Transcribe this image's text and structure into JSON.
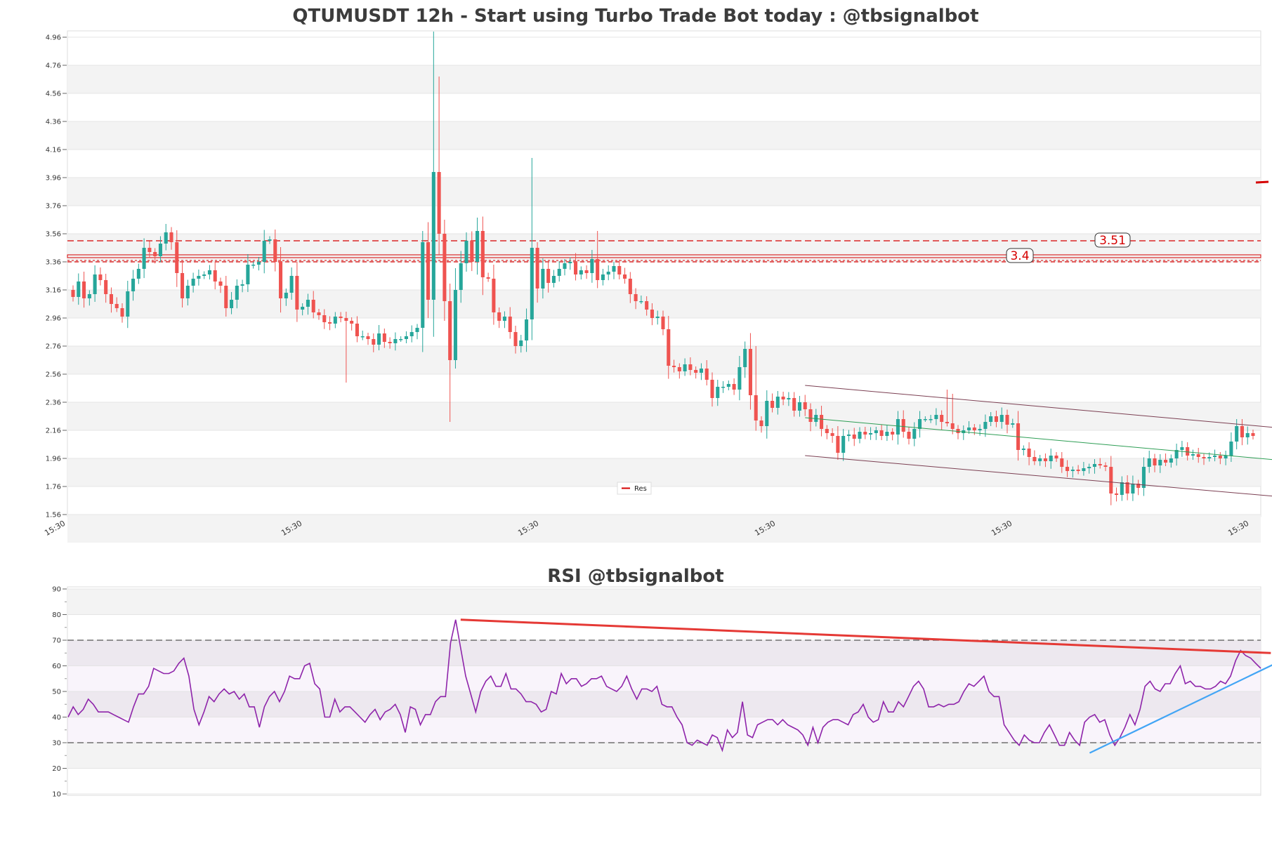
{
  "chart_data": [
    {
      "type": "candlestick",
      "title": "QTUMUSDT 12h - Start using Turbo Trade Bot today : @tbsignalbot",
      "y_ticks": [
        "4.96",
        "4.76",
        "4.56",
        "4.36",
        "4.16",
        "3.96",
        "3.76",
        "3.56",
        "3.36",
        "3.16",
        "2.96",
        "2.76",
        "2.56",
        "2.36",
        "2.16",
        "1.96",
        "1.76",
        "1.56"
      ],
      "ylim": [
        1.56,
        5.0
      ],
      "x_ticks": [
        "15:30",
        "15:30",
        "15:30",
        "15:30",
        "15:30",
        "15:30"
      ],
      "grid": "horizontal alternating bands",
      "colors": {
        "up": "#26a69a",
        "down": "#ef5350",
        "resistance": "#d50000",
        "channel": "#7b3f52",
        "trend": "#2e9e55"
      },
      "close": [
        3.11,
        3.22,
        3.1,
        3.13,
        3.27,
        3.23,
        3.13,
        3.06,
        3.03,
        2.97,
        3.15,
        3.24,
        3.31,
        3.46,
        3.43,
        3.4,
        3.49,
        3.57,
        3.5,
        3.28,
        3.1,
        3.19,
        3.24,
        3.26,
        3.27,
        3.3,
        3.22,
        3.19,
        3.03,
        3.09,
        3.19,
        3.2,
        3.34,
        3.34,
        3.36,
        3.51,
        3.52,
        3.36,
        3.1,
        3.14,
        3.26,
        3.02,
        3.04,
        3.09,
        3.0,
        2.98,
        2.93,
        2.92,
        2.97,
        2.96,
        2.94,
        2.92,
        2.83,
        2.83,
        2.81,
        2.77,
        2.85,
        2.79,
        2.78,
        2.81,
        2.81,
        2.83,
        2.86,
        2.89,
        3.5,
        3.09,
        4.0,
        3.56,
        3.08,
        2.66,
        3.16,
        3.35,
        3.51,
        3.36,
        3.58,
        3.25,
        3.24,
        3.0,
        2.94,
        2.97,
        2.86,
        2.76,
        2.8,
        2.95,
        3.46,
        3.17,
        3.31,
        3.21,
        3.26,
        3.31,
        3.35,
        3.36,
        3.27,
        3.3,
        3.28,
        3.38,
        3.23,
        3.27,
        3.29,
        3.33,
        3.27,
        3.24,
        3.13,
        3.08,
        3.08,
        3.02,
        2.96,
        2.97,
        2.88,
        2.62,
        2.61,
        2.58,
        2.63,
        2.59,
        2.57,
        2.6,
        2.52,
        2.39,
        2.47,
        2.47,
        2.49,
        2.45,
        2.61,
        2.74,
        2.41,
        2.23,
        2.19,
        2.37,
        2.32,
        2.4,
        2.38,
        2.39,
        2.3,
        2.36,
        2.31,
        2.22,
        2.27,
        2.17,
        2.14,
        2.12,
        2.0,
        2.12,
        2.13,
        2.1,
        2.15,
        2.13,
        2.14,
        2.16,
        2.12,
        2.15,
        2.13,
        2.24,
        2.15,
        2.1,
        2.17,
        2.24,
        2.24,
        2.24,
        2.27,
        2.22,
        2.21,
        2.17,
        2.14,
        2.16,
        2.18,
        2.16,
        2.17,
        2.22,
        2.26,
        2.22,
        2.27,
        2.2,
        2.21,
        2.02,
        2.03,
        1.97,
        1.94,
        1.96,
        1.94,
        1.98,
        1.96,
        1.9,
        1.87,
        1.88,
        1.87,
        1.89,
        1.9,
        1.92,
        1.91,
        1.9,
        1.71,
        1.7,
        1.79,
        1.71,
        1.78,
        1.75,
        1.9,
        1.96,
        1.91,
        1.95,
        1.93,
        1.96,
        2.02,
        2.04,
        1.98,
        1.99,
        1.97,
        1.96,
        1.97,
        1.98,
        1.96,
        1.98,
        2.08,
        2.19,
        2.11,
        2.14,
        2.12
      ],
      "open_first": 3.16,
      "resistance_levels": [
        3.51,
        3.4
      ],
      "resistance_labels": [
        "3.51",
        "3.4"
      ],
      "legend": [
        "Res"
      ],
      "channel": {
        "start_index": 134,
        "end_index": 220,
        "upper": [
          2.48,
          2.18
        ],
        "middle": [
          2.25,
          1.95
        ],
        "lower": [
          1.98,
          1.69
        ]
      }
    },
    {
      "type": "line",
      "title": "RSI @tbsignalbot",
      "ylim": [
        10,
        90
      ],
      "y_ticks": [
        "90",
        "80",
        "70",
        "60",
        "50",
        "40",
        "30",
        "20",
        "10"
      ],
      "guide_lines": [
        70,
        30
      ],
      "values": [
        40,
        44,
        41,
        43,
        47,
        45,
        42,
        42,
        42,
        41,
        40,
        39,
        38,
        44,
        49,
        49,
        52,
        59,
        58,
        57,
        57,
        58,
        61,
        63,
        56,
        43,
        37,
        42,
        48,
        46,
        49,
        51,
        49,
        50,
        47,
        49,
        44,
        44,
        36,
        44,
        48,
        50,
        46,
        50,
        56,
        55,
        55,
        60,
        61,
        53,
        51,
        40,
        40,
        47,
        42,
        44,
        44,
        42,
        40,
        38,
        41,
        43,
        39,
        42,
        43,
        45,
        41,
        34,
        44,
        43,
        37,
        41,
        41,
        46,
        48,
        48,
        69,
        78,
        67,
        56,
        49,
        42,
        50,
        54,
        56,
        52,
        52,
        57,
        51,
        51,
        49,
        46,
        46,
        45,
        42,
        43,
        50,
        49,
        57,
        53,
        55,
        55,
        52,
        53,
        55,
        55,
        56,
        52,
        51,
        50,
        52,
        56,
        51,
        47,
        51,
        51,
        50,
        52,
        45,
        44,
        44,
        40,
        37,
        30,
        29,
        31,
        30,
        29,
        33,
        32,
        27,
        35,
        32,
        34,
        46,
        33,
        32,
        37,
        38,
        39,
        39,
        37,
        39,
        37,
        36,
        35,
        33,
        29,
        36,
        30,
        36,
        38,
        39,
        39,
        38,
        37,
        41,
        42,
        45,
        40,
        38,
        39,
        46,
        42,
        42,
        46,
        44,
        48,
        52,
        54,
        51,
        44,
        44,
        45,
        44,
        45,
        45,
        46,
        50,
        53,
        52,
        54,
        56,
        50,
        48,
        48,
        37,
        34,
        31,
        29,
        33,
        31,
        30,
        30,
        34,
        37,
        33,
        29,
        29,
        34,
        31,
        29,
        38,
        40,
        41,
        38,
        39,
        33,
        29,
        32,
        36,
        41,
        37,
        43,
        52,
        54,
        51,
        50,
        53,
        53,
        57,
        60,
        53,
        54,
        52,
        52,
        51,
        51,
        52,
        54,
        53,
        56,
        62,
        66,
        64,
        63,
        61,
        59
      ],
      "trendlines": [
        {
          "color": "#e53935",
          "from": [
            78,
            78
          ],
          "to": [
            239,
            65
          ]
        },
        {
          "color": "#42a5f5",
          "from": [
            203,
            26
          ],
          "to": [
            240,
            61
          ]
        }
      ],
      "colors": {
        "line": "#8e24aa"
      }
    }
  ]
}
